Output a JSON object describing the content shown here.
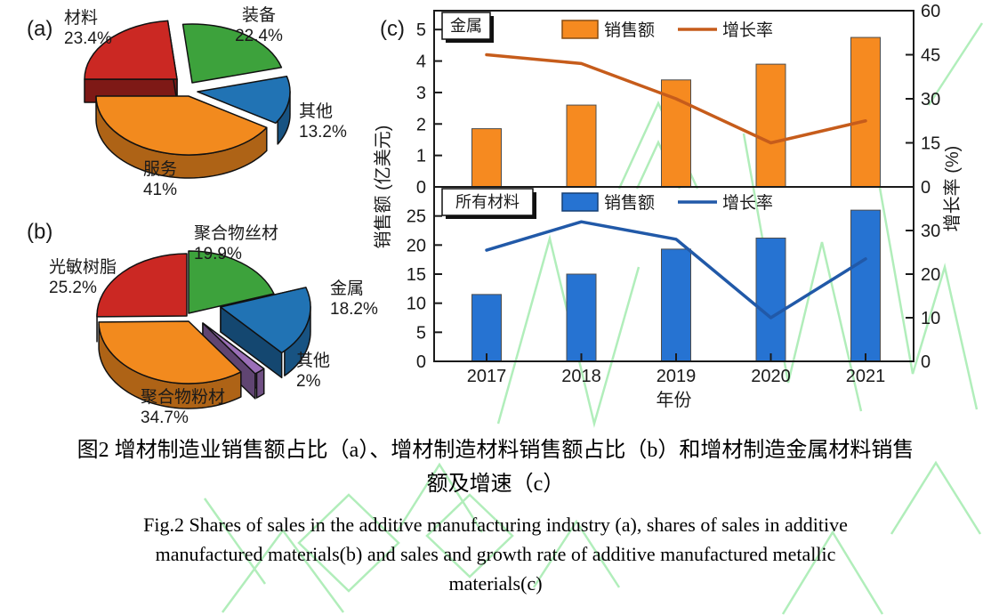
{
  "figure": {
    "panel_labels": {
      "a": "(a)",
      "b": "(b)",
      "c": "(c)"
    },
    "captions": {
      "zh_line1": "图2  增材制造业销售额占比（a）、增材制造材料销售额占比（b）和增材制造金属材料销售",
      "zh_line2": "额及增速（c）",
      "en_line1": "Fig.2 Shares of sales in the additive manufacturing industry (a), shares of sales in additive",
      "en_line2": "manufactured materials(b) and sales and growth rate of additive manufactured metallic",
      "en_line3": "materials(c)"
    },
    "watermark_color": "#97e8a4"
  },
  "chart_data": [
    {
      "id": "pie_a",
      "type": "pie",
      "panel": "(a)",
      "start_angle_deg": 180,
      "slices": [
        {
          "label": "材料",
          "value": 23.4,
          "value_label": "23.4%",
          "color": "#cb2823"
        },
        {
          "label": "装备",
          "value": 22.4,
          "value_label": "22.4%",
          "color": "#3da23c"
        },
        {
          "label": "其他",
          "value": 13.2,
          "value_label": "13.2%",
          "color": "#2173b4"
        },
        {
          "label": "服务",
          "value": 41,
          "value_label": "41%",
          "color": "#f28a1e"
        }
      ]
    },
    {
      "id": "pie_b",
      "type": "pie",
      "panel": "(b)",
      "start_angle_deg": 270,
      "slices": [
        {
          "label": "聚合物丝材",
          "value": 19.9,
          "value_label": "19.9%",
          "color": "#3da23c"
        },
        {
          "label": "金属",
          "value": 18.2,
          "value_label": "18.2%",
          "color": "#2173b4"
        },
        {
          "label": "其他",
          "value": 2,
          "value_label": "2%",
          "color": "#9b6fb8"
        },
        {
          "label": "聚合物粉材",
          "value": 34.7,
          "value_label": "34.7%",
          "color": "#f28a1e"
        },
        {
          "label": "光敏树脂",
          "value": 25.2,
          "value_label": "25.2%",
          "color": "#cb2823"
        }
      ]
    },
    {
      "id": "metal",
      "type": "bar+line",
      "panel": "(c)",
      "panel_tag": "金属",
      "categories": [
        "2017",
        "2018",
        "2019",
        "2020",
        "2021"
      ],
      "bar_series": {
        "name": "销售额",
        "values": [
          1.85,
          2.6,
          3.4,
          3.9,
          4.75
        ],
        "color": "#f68a20"
      },
      "line_series": {
        "name": "增长率",
        "values": [
          45,
          42,
          30,
          15,
          22.5
        ],
        "color": "#c65c1b"
      },
      "left_axis": {
        "label": "销售额 (亿美元)",
        "ticks": [
          0,
          1,
          2,
          3,
          4,
          5
        ],
        "range": [
          0,
          5.6
        ]
      },
      "right_axis": {
        "label": "增长率 (%)",
        "ticks": [
          0,
          15,
          30,
          45,
          60
        ],
        "range": [
          0,
          60
        ]
      },
      "grid": false,
      "legend_position": "top"
    },
    {
      "id": "all_materials",
      "type": "bar+line",
      "panel_tag": "所有材料",
      "categories": [
        "2017",
        "2018",
        "2019",
        "2020",
        "2021"
      ],
      "bar_series": {
        "name": "销售额",
        "values": [
          11.5,
          15,
          19.3,
          21.2,
          26
        ],
        "color": "#2673d2"
      },
      "line_series": {
        "name": "增长率",
        "values": [
          25.5,
          32,
          28,
          10,
          23.5
        ],
        "color": "#2159a8"
      },
      "left_axis": {
        "ticks": [
          0,
          5,
          10,
          15,
          20,
          25
        ],
        "range": [
          0,
          30
        ]
      },
      "right_axis": {
        "ticks": [
          0,
          10,
          20,
          30
        ],
        "range": [
          0,
          40
        ]
      },
      "xlabel": "年份",
      "grid": false,
      "legend_position": "top"
    }
  ]
}
